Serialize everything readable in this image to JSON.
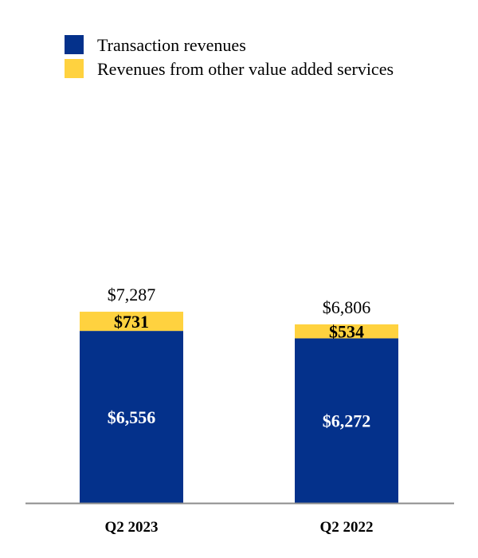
{
  "chart_data": {
    "type": "bar",
    "stacked": true,
    "title": "",
    "xlabel": "",
    "ylabel": "",
    "categories": [
      "Q2 2023",
      "Q2 2022"
    ],
    "series": [
      {
        "name": "Transaction revenues",
        "color": "#04318b",
        "label_color": "#ffffff",
        "values": [
          6556,
          6272
        ],
        "labels": [
          "$6,556",
          "$6,272"
        ]
      },
      {
        "name": "Revenues from other value added services",
        "color": "#ffd23f",
        "label_color": "#000000",
        "values": [
          731,
          534
        ],
        "labels": [
          "$731",
          "$534"
        ]
      }
    ],
    "totals": [
      7287,
      6806
    ],
    "total_labels": [
      "$7,287",
      "$6,806"
    ],
    "ylim": [
      0,
      11000
    ],
    "grid": false,
    "legend_position": "top-left"
  }
}
